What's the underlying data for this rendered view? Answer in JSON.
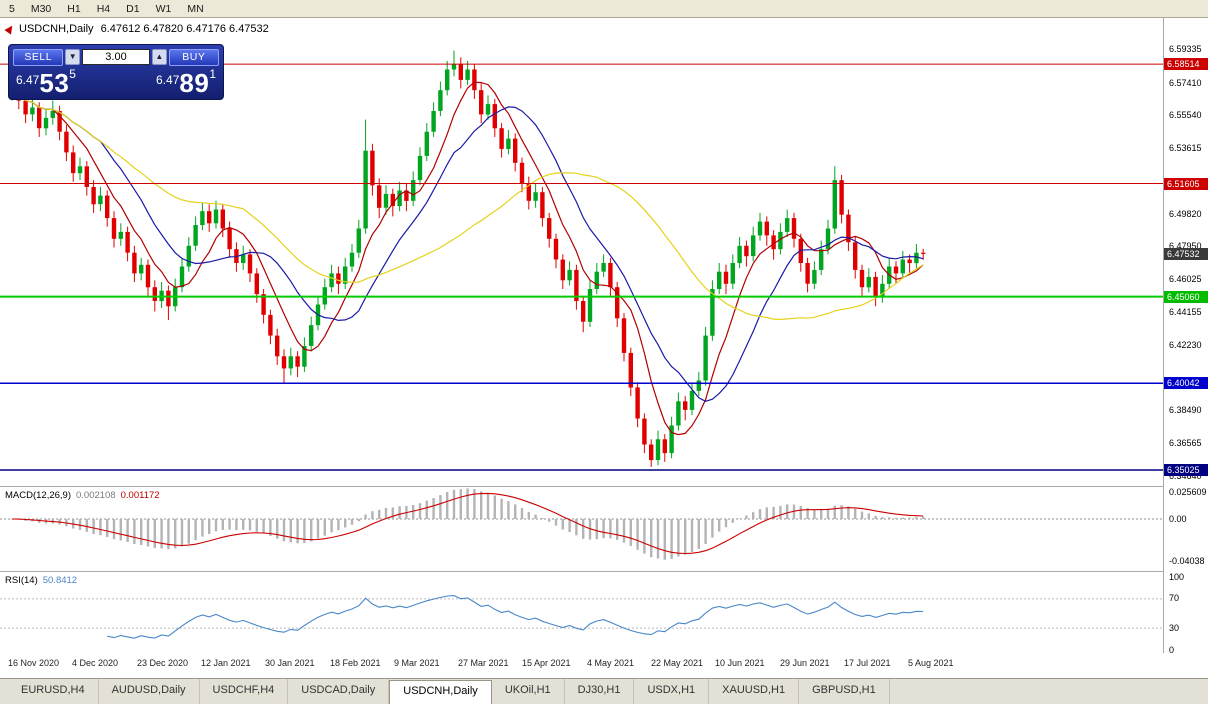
{
  "toolbar": {
    "timeframes": [
      "5",
      "M30",
      "H1",
      "H4",
      "D1",
      "W1",
      "MN"
    ]
  },
  "chart_header": {
    "symbol_period": "USDCNH,Daily",
    "ohlc": "6.47612 6.47820 6.47176 6.47532"
  },
  "trade_panel": {
    "sell_label": "SELL",
    "buy_label": "BUY",
    "volume": "3.00",
    "spin_down_icon": "▼",
    "spin_up_icon": "▲",
    "sell_price_main": "6.47",
    "sell_price_big": "53",
    "sell_price_sup": "5",
    "buy_price_main": "6.47",
    "buy_price_big": "89",
    "buy_price_sup": "1"
  },
  "price_axis": {
    "ticks": [
      "6.59335",
      "6.57410",
      "6.55540",
      "6.53615",
      "6.49820",
      "6.47950",
      "6.46025",
      "6.44155",
      "6.42230",
      "6.38490",
      "6.36565",
      "6.34640"
    ],
    "tags": [
      {
        "text": "6.58514",
        "color": "#cc0000"
      },
      {
        "text": "6.51605",
        "color": "#cc0000"
      },
      {
        "text": "6.47532",
        "color": "#3a3a3a"
      },
      {
        "text": "6.45060",
        "color": "#00bb00"
      },
      {
        "text": "6.40042",
        "color": "#0000cc"
      },
      {
        "text": "6.35025",
        "color": "#000080"
      }
    ]
  },
  "indicators": {
    "macd": {
      "label": "MACD(12,26,9)",
      "value1": "0.002108",
      "value2": "0.001172",
      "axis": [
        "0.025609",
        "0.00",
        "-0.04038"
      ]
    },
    "rsi": {
      "label": "RSI(14)",
      "value": "50.8412",
      "axis": [
        "100",
        "70",
        "30",
        "0"
      ]
    }
  },
  "date_axis": [
    "16 Nov 2020",
    "4 Dec 2020",
    "23 Dec 2020",
    "12 Jan 2021",
    "30 Jan 2021",
    "18 Feb 2021",
    "9 Mar 2021",
    "27 Mar 2021",
    "15 Apr 2021",
    "4 May 2021",
    "22 May 2021",
    "10 Jun 2021",
    "29 Jun 2021",
    "17 Jul 2021",
    "5 Aug 2021"
  ],
  "tabs": [
    {
      "label": "EURUSD,H4",
      "active": false
    },
    {
      "label": "AUDUSD,Daily",
      "active": false
    },
    {
      "label": "USDCHF,H4",
      "active": false
    },
    {
      "label": "USDCAD,Daily",
      "active": false
    },
    {
      "label": "USDCNH,Daily",
      "active": true
    },
    {
      "label": "UKOil,H1",
      "active": false
    },
    {
      "label": "DJ30,H1",
      "active": false
    },
    {
      "label": "USDX,H1",
      "active": false
    },
    {
      "label": "XAUUSD,H1",
      "active": false
    },
    {
      "label": "GBPUSD,H1",
      "active": false
    }
  ],
  "chart_data": {
    "type": "candlestick",
    "symbol": "USDCNH",
    "timeframe": "Daily",
    "x_range": [
      "16 Nov 2020",
      "5 Aug 2021"
    ],
    "price_range": [
      6.342,
      6.612
    ],
    "current_price": 6.47532,
    "up_color": "#00a520",
    "down_color": "#e00000",
    "levels": [
      {
        "price": 6.58514,
        "color": "#cc0000",
        "width": 1
      },
      {
        "price": 6.51605,
        "color": "#cc0000",
        "width": 1
      },
      {
        "price": 6.4506,
        "color": "#00cc00",
        "width": 2
      },
      {
        "price": 6.40042,
        "color": "#0000cc",
        "width": 1.5
      },
      {
        "price": 6.35025,
        "color": "#000080",
        "width": 1.5
      }
    ],
    "moving_averages": [
      {
        "period": 7,
        "color": "#b00000"
      },
      {
        "period": 14,
        "color": "#1a1aa6"
      },
      {
        "period": 35,
        "color": "#e6d219"
      }
    ],
    "sub_indicators": {
      "macd": {
        "fast": 12,
        "slow": 26,
        "signal": 9,
        "last": 0.002108,
        "last_signal": 0.001172,
        "histogram_color": "#b4b4b4",
        "signal_color": "#cc0000"
      },
      "rsi": {
        "period": 14,
        "last": 50.8412,
        "color": "#4a87c8",
        "levels": [
          70,
          30
        ]
      }
    },
    "candles": [
      [
        6.568,
        6.578,
        6.564,
        6.572
      ],
      [
        6.572,
        6.576,
        6.559,
        6.564
      ],
      [
        6.564,
        6.567,
        6.551,
        6.556
      ],
      [
        6.556,
        6.565,
        6.552,
        6.56
      ],
      [
        6.56,
        6.563,
        6.543,
        6.548
      ],
      [
        6.548,
        6.559,
        6.544,
        6.554
      ],
      [
        6.554,
        6.564,
        6.55,
        6.558
      ],
      [
        6.558,
        6.561,
        6.541,
        6.546
      ],
      [
        6.546,
        6.55,
        6.529,
        6.534
      ],
      [
        6.534,
        6.538,
        6.517,
        6.522
      ],
      [
        6.522,
        6.531,
        6.518,
        6.526
      ],
      [
        6.526,
        6.529,
        6.509,
        6.514
      ],
      [
        6.514,
        6.518,
        6.499,
        6.504
      ],
      [
        6.504,
        6.514,
        6.5,
        6.509
      ],
      [
        6.509,
        6.512,
        6.491,
        6.496
      ],
      [
        6.496,
        6.5,
        6.479,
        6.484
      ],
      [
        6.484,
        6.493,
        6.48,
        6.488
      ],
      [
        6.488,
        6.491,
        6.471,
        6.476
      ],
      [
        6.476,
        6.48,
        6.459,
        6.464
      ],
      [
        6.464,
        6.473,
        6.46,
        6.469
      ],
      [
        6.469,
        6.472,
        6.451,
        6.456
      ],
      [
        6.456,
        6.46,
        6.442,
        6.448
      ],
      [
        6.448,
        6.459,
        6.444,
        6.454
      ],
      [
        6.454,
        6.457,
        6.437,
        6.445
      ],
      [
        6.445,
        6.461,
        6.442,
        6.456
      ],
      [
        6.456,
        6.473,
        6.453,
        6.468
      ],
      [
        6.468,
        6.485,
        6.465,
        6.48
      ],
      [
        6.48,
        6.497,
        6.477,
        6.492
      ],
      [
        6.492,
        6.505,
        6.489,
        6.5
      ],
      [
        6.5,
        6.504,
        6.488,
        6.493
      ],
      [
        6.493,
        6.506,
        6.49,
        6.501
      ],
      [
        6.501,
        6.504,
        6.485,
        6.49
      ],
      [
        6.49,
        6.494,
        6.473,
        6.478
      ],
      [
        6.478,
        6.482,
        6.465,
        6.47
      ],
      [
        6.47,
        6.48,
        6.466,
        6.475
      ],
      [
        6.475,
        6.478,
        6.459,
        6.464
      ],
      [
        6.464,
        6.467,
        6.447,
        6.452
      ],
      [
        6.452,
        6.455,
        6.435,
        6.44
      ],
      [
        6.44,
        6.443,
        6.423,
        6.428
      ],
      [
        6.428,
        6.432,
        6.411,
        6.416
      ],
      [
        6.416,
        6.42,
        6.4,
        6.409
      ],
      [
        6.409,
        6.421,
        6.405,
        6.416
      ],
      [
        6.416,
        6.419,
        6.404,
        6.41
      ],
      [
        6.41,
        6.427,
        6.407,
        6.422
      ],
      [
        6.422,
        6.439,
        6.419,
        6.434
      ],
      [
        6.434,
        6.451,
        6.431,
        6.446
      ],
      [
        6.446,
        6.461,
        6.443,
        6.456
      ],
      [
        6.456,
        6.469,
        6.453,
        6.464
      ],
      [
        6.464,
        6.468,
        6.452,
        6.458
      ],
      [
        6.458,
        6.473,
        6.455,
        6.468
      ],
      [
        6.468,
        6.481,
        6.465,
        6.476
      ],
      [
        6.476,
        6.495,
        6.473,
        6.49
      ],
      [
        6.49,
        6.553,
        6.487,
        6.535
      ],
      [
        6.535,
        6.539,
        6.509,
        6.515
      ],
      [
        6.515,
        6.519,
        6.496,
        6.502
      ],
      [
        6.502,
        6.515,
        6.498,
        6.51
      ],
      [
        6.51,
        6.513,
        6.497,
        6.503
      ],
      [
        6.503,
        6.517,
        6.5,
        6.512
      ],
      [
        6.512,
        6.516,
        6.5,
        6.506
      ],
      [
        6.506,
        6.523,
        6.503,
        6.518
      ],
      [
        6.518,
        6.537,
        6.515,
        6.532
      ],
      [
        6.532,
        6.551,
        6.529,
        6.546
      ],
      [
        6.546,
        6.563,
        6.543,
        6.558
      ],
      [
        6.558,
        6.575,
        6.555,
        6.57
      ],
      [
        6.57,
        6.587,
        6.567,
        6.582
      ],
      [
        6.582,
        6.593,
        6.578,
        6.585
      ],
      [
        6.585,
        6.589,
        6.571,
        6.576
      ],
      [
        6.576,
        6.587,
        6.573,
        6.582
      ],
      [
        6.582,
        6.585,
        6.565,
        6.57
      ],
      [
        6.57,
        6.574,
        6.551,
        6.556
      ],
      [
        6.556,
        6.567,
        6.553,
        6.562
      ],
      [
        6.562,
        6.565,
        6.543,
        6.548
      ],
      [
        6.548,
        6.551,
        6.531,
        6.536
      ],
      [
        6.536,
        6.547,
        6.533,
        6.542
      ],
      [
        6.542,
        6.545,
        6.523,
        6.528
      ],
      [
        6.528,
        6.531,
        6.511,
        6.516
      ],
      [
        6.516,
        6.52,
        6.501,
        6.506
      ],
      [
        6.506,
        6.516,
        6.502,
        6.511
      ],
      [
        6.511,
        6.514,
        6.491,
        6.496
      ],
      [
        6.496,
        6.499,
        6.479,
        6.484
      ],
      [
        6.484,
        6.487,
        6.467,
        6.472
      ],
      [
        6.472,
        6.475,
        6.455,
        6.46
      ],
      [
        6.46,
        6.471,
        6.457,
        6.466
      ],
      [
        6.466,
        6.469,
        6.443,
        6.448
      ],
      [
        6.448,
        6.451,
        6.43,
        6.436
      ],
      [
        6.436,
        6.46,
        6.433,
        6.455
      ],
      [
        6.455,
        6.47,
        6.452,
        6.465
      ],
      [
        6.465,
        6.475,
        6.462,
        6.47
      ],
      [
        6.47,
        6.473,
        6.451,
        6.456
      ],
      [
        6.456,
        6.459,
        6.433,
        6.438
      ],
      [
        6.438,
        6.441,
        6.413,
        6.418
      ],
      [
        6.418,
        6.421,
        6.393,
        6.398
      ],
      [
        6.398,
        6.401,
        6.375,
        6.38
      ],
      [
        6.38,
        6.383,
        6.36,
        6.365
      ],
      [
        6.365,
        6.368,
        6.352,
        6.356
      ],
      [
        6.356,
        6.373,
        6.353,
        6.368
      ],
      [
        6.368,
        6.371,
        6.355,
        6.36
      ],
      [
        6.36,
        6.381,
        6.357,
        6.376
      ],
      [
        6.376,
        6.395,
        6.373,
        6.39
      ],
      [
        6.39,
        6.393,
        6.379,
        6.385
      ],
      [
        6.385,
        6.401,
        6.382,
        6.396
      ],
      [
        6.396,
        6.407,
        6.393,
        6.402
      ],
      [
        6.402,
        6.433,
        6.399,
        6.428
      ],
      [
        6.428,
        6.46,
        6.425,
        6.455
      ],
      [
        6.455,
        6.47,
        6.452,
        6.465
      ],
      [
        6.465,
        6.469,
        6.452,
        6.458
      ],
      [
        6.458,
        6.475,
        6.455,
        6.47
      ],
      [
        6.47,
        6.485,
        6.467,
        6.48
      ],
      [
        6.48,
        6.483,
        6.468,
        6.474
      ],
      [
        6.474,
        6.491,
        6.471,
        6.486
      ],
      [
        6.486,
        6.499,
        6.483,
        6.494
      ],
      [
        6.494,
        6.497,
        6.48,
        6.486
      ],
      [
        6.486,
        6.489,
        6.472,
        6.478
      ],
      [
        6.478,
        6.493,
        6.475,
        6.488
      ],
      [
        6.488,
        6.501,
        6.485,
        6.496
      ],
      [
        6.496,
        6.499,
        6.479,
        6.484
      ],
      [
        6.484,
        6.487,
        6.465,
        6.47
      ],
      [
        6.47,
        6.473,
        6.453,
        6.458
      ],
      [
        6.458,
        6.471,
        6.455,
        6.466
      ],
      [
        6.466,
        6.483,
        6.463,
        6.478
      ],
      [
        6.478,
        6.495,
        6.475,
        6.49
      ],
      [
        6.49,
        6.526,
        6.487,
        6.518
      ],
      [
        6.518,
        6.521,
        6.493,
        6.498
      ],
      [
        6.498,
        6.501,
        6.477,
        6.482
      ],
      [
        6.482,
        6.485,
        6.461,
        6.466
      ],
      [
        6.466,
        6.469,
        6.451,
        6.456
      ],
      [
        6.456,
        6.467,
        6.453,
        6.462
      ],
      [
        6.462,
        6.465,
        6.445,
        6.45
      ],
      [
        6.45,
        6.463,
        6.447,
        6.458
      ],
      [
        6.458,
        6.473,
        6.455,
        6.468
      ],
      [
        6.468,
        6.471,
        6.458,
        6.464
      ],
      [
        6.464,
        6.477,
        6.461,
        6.472
      ],
      [
        6.472,
        6.475,
        6.463,
        6.47
      ],
      [
        6.47,
        6.481,
        6.467,
        6.476
      ],
      [
        6.476,
        6.4782,
        6.4718,
        6.4753
      ]
    ]
  }
}
